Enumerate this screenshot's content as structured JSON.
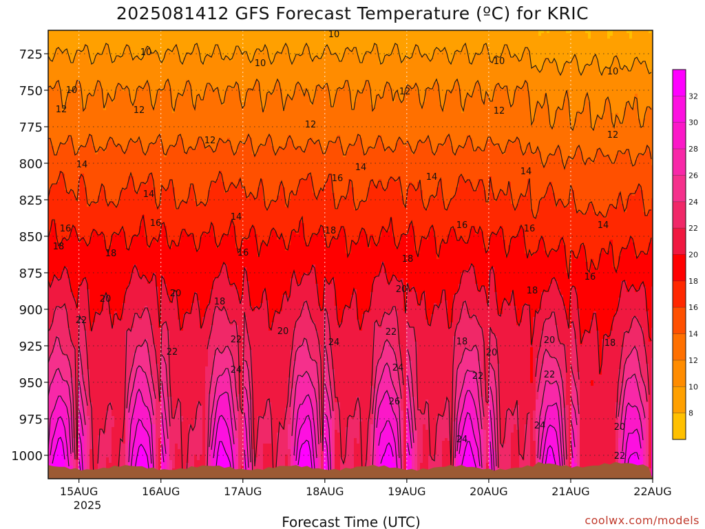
{
  "chart_data": {
    "type": "heatmap",
    "title": "2025081412 GFS Forecast Temperature (ºC) for KRIC",
    "xlabel": "Forecast Time (UTC)",
    "ylabel": "",
    "x_ticks": [
      "15AUG",
      "16AUG",
      "17AUG",
      "18AUG",
      "19AUG",
      "20AUG",
      "21AUG",
      "22AUG"
    ],
    "x_tick_subtitle": "2025",
    "x_range_days": [
      -0.375,
      7.0
    ],
    "y_ticks": [
      725,
      750,
      775,
      800,
      825,
      850,
      875,
      900,
      925,
      950,
      975,
      1000
    ],
    "y_range_hpa": [
      713,
      1015
    ],
    "y_direction": "pressure increasing downward",
    "grid": true,
    "colorbar": {
      "levels": [
        8,
        10,
        12,
        14,
        16,
        18,
        20,
        22,
        24,
        26,
        28,
        30,
        32
      ],
      "colors": [
        "#ffc000",
        "#ffa000",
        "#ff8c00",
        "#ff7000",
        "#ff5000",
        "#ff2800",
        "#ff0000",
        "#f01840",
        "#f02868",
        "#f5308c",
        "#f828a8",
        "#fb18c8",
        "#fd10e0",
        "#ff00ff"
      ]
    },
    "contour_levels": [
      10,
      12,
      14,
      16,
      18,
      20,
      22,
      24,
      26,
      28,
      30,
      32
    ],
    "contour_label_values": [
      "10",
      "12",
      "14",
      "16",
      "18",
      "20",
      "22",
      "24",
      "26"
    ],
    "approx_temperature_profile": {
      "pressures_hpa": [
        725,
        750,
        775,
        800,
        825,
        850,
        875,
        900,
        925,
        950,
        975,
        1000
      ],
      "night_min_c": [
        10,
        12,
        13,
        15,
        16,
        18,
        19,
        20,
        21,
        21,
        22,
        22
      ],
      "afternoon_max_c": [
        10,
        12,
        13,
        15,
        17,
        18,
        20,
        22,
        24,
        27,
        30,
        33
      ]
    },
    "ground_color": "#9c5a34",
    "credit": "coolwx.com/models"
  }
}
